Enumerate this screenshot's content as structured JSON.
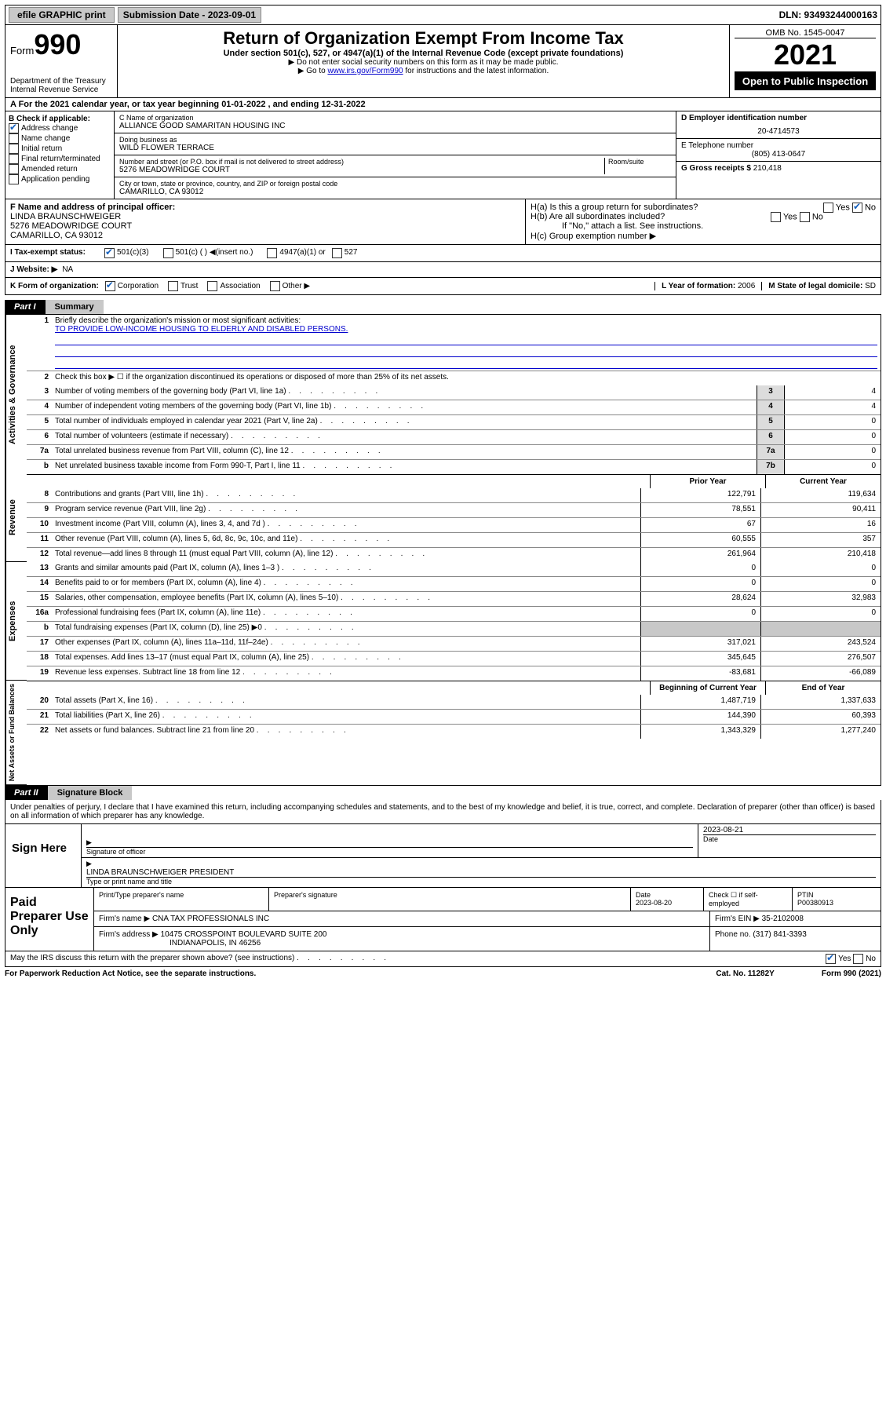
{
  "topbar": {
    "efile": "efile GRAPHIC print",
    "submission_label": "Submission Date - 2023-09-01",
    "dln": "DLN: 93493244000163"
  },
  "header": {
    "form_label": "Form",
    "form_no": "990",
    "dept": "Department of the Treasury",
    "irs": "Internal Revenue Service",
    "title": "Return of Organization Exempt From Income Tax",
    "subtitle": "Under section 501(c), 527, or 4947(a)(1) of the Internal Revenue Code (except private foundations)",
    "note1": "▶ Do not enter social security numbers on this form as it may be made public.",
    "note2_pre": "▶ Go to ",
    "note2_link": "www.irs.gov/Form990",
    "note2_post": " for instructions and the latest information.",
    "omb": "OMB No. 1545-0047",
    "year": "2021",
    "openpub": "Open to Public Inspection"
  },
  "rowA": "A For the 2021 calendar year, or tax year beginning 01-01-2022    , and ending 12-31-2022",
  "secB": {
    "label": "B Check if applicable:",
    "items": [
      "Address change",
      "Name change",
      "Initial return",
      "Final return/terminated",
      "Amended return",
      "Application pending"
    ],
    "checked": [
      true,
      false,
      false,
      false,
      false,
      false
    ]
  },
  "secC": {
    "c_label": "C Name of organization",
    "org": "ALLIANCE GOOD SAMARITAN HOUSING INC",
    "dba_label": "Doing business as",
    "dba": "WILD FLOWER TERRACE",
    "addr_label": "Number and street (or P.O. box if mail is not delivered to street address)",
    "room": "Room/suite",
    "addr": "5276 MEADOWRIDGE COURT",
    "city_label": "City or town, state or province, country, and ZIP or foreign postal code",
    "city": "CAMARILLO, CA  93012"
  },
  "secD": {
    "label": "D Employer identification number",
    "ein": "20-4714573",
    "e_label": "E Telephone number",
    "phone": "(805) 413-0647",
    "g_label": "G Gross receipts $",
    "gross": "210,418"
  },
  "secF": {
    "label": "F  Name and address of principal officer:",
    "name": "LINDA BRAUNSCHWEIGER",
    "addr1": "5276 MEADOWRIDGE COURT",
    "addr2": "CAMARILLO, CA  93012",
    "ha": "H(a)  Is this a group return for subordinates?",
    "hb": "H(b)  Are all subordinates included?",
    "hnote": "If \"No,\" attach a list. See instructions.",
    "hc": "H(c)  Group exemption number ▶",
    "yes": "Yes",
    "no": "No"
  },
  "rowI": {
    "label": "I      Tax-exempt status:",
    "opts": [
      "501(c)(3)",
      "501(c) (  ) ◀(insert no.)",
      "4947(a)(1) or",
      "527"
    ]
  },
  "rowJ": {
    "label": "J     Website: ▶",
    "val": "NA"
  },
  "rowK": {
    "label": "K Form of organization:",
    "opts": [
      "Corporation",
      "Trust",
      "Association",
      "Other ▶"
    ],
    "l_label": "L Year of formation:",
    "l_val": "2006",
    "m_label": "M State of legal domicile:",
    "m_val": "SD"
  },
  "part1": {
    "hdr_black": "Part I",
    "hdr_grey": "Summary",
    "briefly": "Briefly describe the organization's mission or most significant activities:",
    "mission": "TO PROVIDE LOW-INCOME HOUSING TO ELDERLY AND DISABLED PERSONS.",
    "line2": "Check this box ▶ ☐  if the organization discontinued its operations or disposed of more than 25% of its net assets.",
    "lines_ag": [
      {
        "n": "3",
        "t": "Number of voting members of the governing body (Part VI, line 1a)",
        "b": "3",
        "v": "4"
      },
      {
        "n": "4",
        "t": "Number of independent voting members of the governing body (Part VI, line 1b)",
        "b": "4",
        "v": "4"
      },
      {
        "n": "5",
        "t": "Total number of individuals employed in calendar year 2021 (Part V, line 2a)",
        "b": "5",
        "v": "0"
      },
      {
        "n": "6",
        "t": "Total number of volunteers (estimate if necessary)",
        "b": "6",
        "v": "0"
      },
      {
        "n": "7a",
        "t": "Total unrelated business revenue from Part VIII, column (C), line 12",
        "b": "7a",
        "v": "0"
      },
      {
        "n": "b",
        "t": "Net unrelated business taxable income from Form 990-T, Part I, line 11",
        "b": "7b",
        "v": "0"
      }
    ],
    "col_prior": "Prior Year",
    "col_curr": "Current Year",
    "rev": [
      {
        "n": "8",
        "t": "Contributions and grants (Part VIII, line 1h)",
        "p": "122,791",
        "c": "119,634"
      },
      {
        "n": "9",
        "t": "Program service revenue (Part VIII, line 2g)",
        "p": "78,551",
        "c": "90,411"
      },
      {
        "n": "10",
        "t": "Investment income (Part VIII, column (A), lines 3, 4, and 7d )",
        "p": "67",
        "c": "16"
      },
      {
        "n": "11",
        "t": "Other revenue (Part VIII, column (A), lines 5, 6d, 8c, 9c, 10c, and 11e)",
        "p": "60,555",
        "c": "357"
      },
      {
        "n": "12",
        "t": "Total revenue—add lines 8 through 11 (must equal Part VIII, column (A), line 12)",
        "p": "261,964",
        "c": "210,418"
      }
    ],
    "exp": [
      {
        "n": "13",
        "t": "Grants and similar amounts paid (Part IX, column (A), lines 1–3 )",
        "p": "0",
        "c": "0"
      },
      {
        "n": "14",
        "t": "Benefits paid to or for members (Part IX, column (A), line 4)",
        "p": "0",
        "c": "0"
      },
      {
        "n": "15",
        "t": "Salaries, other compensation, employee benefits (Part IX, column (A), lines 5–10)",
        "p": "28,624",
        "c": "32,983"
      },
      {
        "n": "16a",
        "t": "Professional fundraising fees (Part IX, column (A), line 11e)",
        "p": "0",
        "c": "0"
      },
      {
        "n": "b",
        "t": "Total fundraising expenses (Part IX, column (D), line 25) ▶0",
        "p": "",
        "c": "",
        "grey": true
      },
      {
        "n": "17",
        "t": "Other expenses (Part IX, column (A), lines 11a–11d, 11f–24e)",
        "p": "317,021",
        "c": "243,524"
      },
      {
        "n": "18",
        "t": "Total expenses. Add lines 13–17 (must equal Part IX, column (A), line 25)",
        "p": "345,645",
        "c": "276,507"
      },
      {
        "n": "19",
        "t": "Revenue less expenses. Subtract line 18 from line 12",
        "p": "-83,681",
        "c": "-66,089"
      }
    ],
    "col_beg": "Beginning of Current Year",
    "col_end": "End of Year",
    "net": [
      {
        "n": "20",
        "t": "Total assets (Part X, line 16)",
        "p": "1,487,719",
        "c": "1,337,633"
      },
      {
        "n": "21",
        "t": "Total liabilities (Part X, line 26)",
        "p": "144,390",
        "c": "60,393"
      },
      {
        "n": "22",
        "t": "Net assets or fund balances. Subtract line 21 from line 20",
        "p": "1,343,329",
        "c": "1,277,240"
      }
    ],
    "side1": "Activities & Governance",
    "side2": "Revenue",
    "side3": "Expenses",
    "side4": "Net Assets or Fund Balances"
  },
  "part2": {
    "hdr_black": "Part II",
    "hdr_grey": "Signature Block",
    "decl": "Under penalties of perjury, I declare that I have examined this return, including accompanying schedules and statements, and to the best of my knowledge and belief, it is true, correct, and complete. Declaration of preparer (other than officer) is based on all information of which preparer has any knowledge."
  },
  "sign": {
    "label": "Sign Here",
    "sig_label": "Signature of officer",
    "date_label": "Date",
    "date": "2023-08-21",
    "name": "LINDA BRAUNSCHWEIGER  PRESIDENT",
    "name_label": "Type or print name and title"
  },
  "paid": {
    "label": "Paid Preparer Use Only",
    "h1": "Print/Type preparer's name",
    "h2": "Preparer's signature",
    "h3": "Date",
    "h3v": "2023-08-20",
    "h4": "Check ☐  if self-employed",
    "h5": "PTIN",
    "h5v": "P00380913",
    "firm_label": "Firm's name    ▶",
    "firm": "CNA TAX PROFESSIONALS INC",
    "ein_label": "Firm's EIN ▶",
    "ein": "35-2102008",
    "addr_label": "Firm's address ▶",
    "addr1": "10475 CROSSPOINT BOULEVARD SUITE 200",
    "addr2": "INDIANAPOLIS, IN  46256",
    "phone_label": "Phone no.",
    "phone": "(317) 841-3393"
  },
  "bottom": {
    "q": "May the IRS discuss this return with the preparer shown above? (see instructions)",
    "yes": "Yes",
    "no": "No"
  },
  "footer": {
    "l": "For Paperwork Reduction Act Notice, see the separate instructions.",
    "m": "Cat. No. 11282Y",
    "r": "Form 990 (2021)"
  }
}
